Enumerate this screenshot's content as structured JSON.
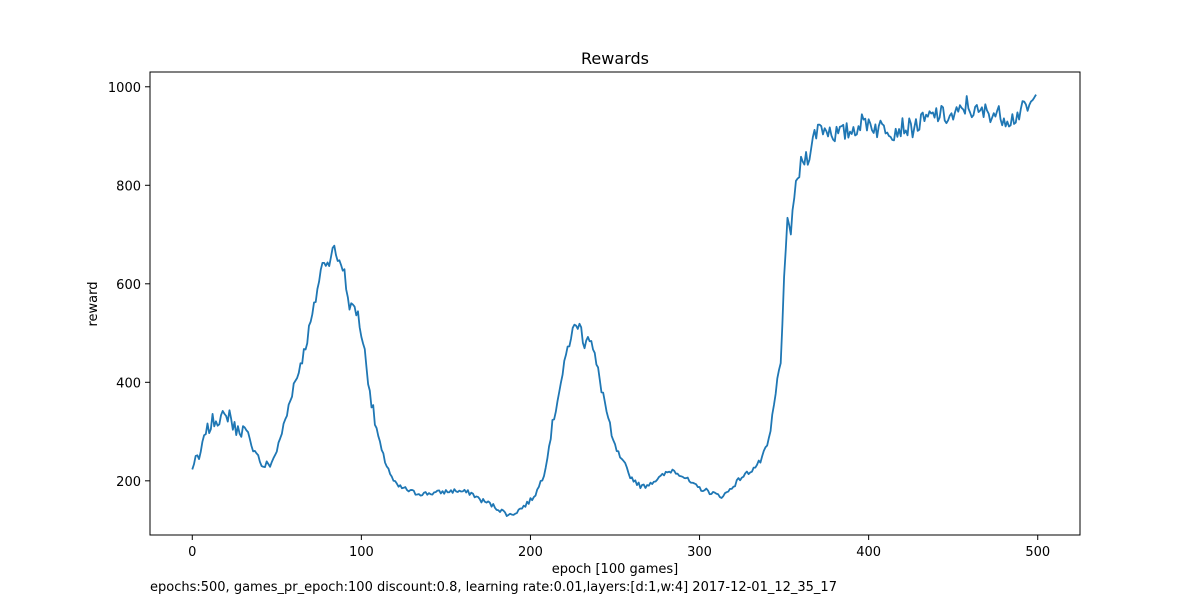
{
  "chart_data": {
    "type": "line",
    "title": "Rewards",
    "xlabel": "epoch [100 games]",
    "ylabel": "reward",
    "xlim": [
      -25,
      525
    ],
    "ylim": [
      90,
      1030
    ],
    "xticks": [
      0,
      100,
      200,
      300,
      400,
      500
    ],
    "yticks": [
      200,
      400,
      600,
      800,
      1000
    ],
    "grid": false,
    "color": "#1f77b4",
    "series": [
      {
        "anchors": [
          [
            0,
            222
          ],
          [
            2,
            250
          ],
          [
            4,
            242
          ],
          [
            6,
            275
          ],
          [
            8,
            300
          ],
          [
            10,
            305
          ],
          [
            12,
            322
          ],
          [
            15,
            325
          ],
          [
            18,
            330
          ],
          [
            20,
            325
          ],
          [
            22,
            340
          ],
          [
            24,
            312
          ],
          [
            26,
            305
          ],
          [
            28,
            300
          ],
          [
            30,
            305
          ],
          [
            33,
            295
          ],
          [
            35,
            268
          ],
          [
            38,
            260
          ],
          [
            40,
            240
          ],
          [
            42,
            225
          ],
          [
            44,
            235
          ],
          [
            46,
            232
          ],
          [
            48,
            245
          ],
          [
            50,
            262
          ],
          [
            52,
            285
          ],
          [
            54,
            310
          ],
          [
            56,
            335
          ],
          [
            58,
            370
          ],
          [
            60,
            395
          ],
          [
            62,
            410
          ],
          [
            64,
            440
          ],
          [
            66,
            460
          ],
          [
            68,
            490
          ],
          [
            70,
            520
          ],
          [
            72,
            550
          ],
          [
            74,
            590
          ],
          [
            76,
            625
          ],
          [
            78,
            650
          ],
          [
            80,
            640
          ],
          [
            82,
            660
          ],
          [
            84,
            670
          ],
          [
            86,
            650
          ],
          [
            88,
            645
          ],
          [
            90,
            620
          ],
          [
            92,
            570
          ],
          [
            94,
            550
          ],
          [
            96,
            555
          ],
          [
            98,
            535
          ],
          [
            100,
            500
          ],
          [
            102,
            460
          ],
          [
            104,
            410
          ],
          [
            106,
            360
          ],
          [
            108,
            320
          ],
          [
            110,
            290
          ],
          [
            112,
            260
          ],
          [
            114,
            240
          ],
          [
            116,
            225
          ],
          [
            118,
            205
          ],
          [
            120,
            195
          ],
          [
            122,
            188
          ],
          [
            125,
            185
          ],
          [
            128,
            180
          ],
          [
            132,
            175
          ],
          [
            138,
            174
          ],
          [
            145,
            176
          ],
          [
            150,
            178
          ],
          [
            156,
            180
          ],
          [
            160,
            178
          ],
          [
            165,
            175
          ],
          [
            170,
            162
          ],
          [
            175,
            155
          ],
          [
            180,
            145
          ],
          [
            185,
            135
          ],
          [
            188,
            130
          ],
          [
            192,
            138
          ],
          [
            196,
            148
          ],
          [
            200,
            160
          ],
          [
            204,
            180
          ],
          [
            208,
            215
          ],
          [
            210,
            250
          ],
          [
            212,
            290
          ],
          [
            214,
            330
          ],
          [
            216,
            370
          ],
          [
            218,
            400
          ],
          [
            220,
            430
          ],
          [
            222,
            470
          ],
          [
            224,
            495
          ],
          [
            226,
            510
          ],
          [
            228,
            520
          ],
          [
            230,
            505
          ],
          [
            232,
            480
          ],
          [
            234,
            500
          ],
          [
            236,
            480
          ],
          [
            238,
            450
          ],
          [
            240,
            420
          ],
          [
            242,
            390
          ],
          [
            244,
            360
          ],
          [
            246,
            320
          ],
          [
            248,
            290
          ],
          [
            250,
            270
          ],
          [
            252,
            255
          ],
          [
            254,
            240
          ],
          [
            256,
            232
          ],
          [
            258,
            215
          ],
          [
            260,
            205
          ],
          [
            262,
            200
          ],
          [
            264,
            192
          ],
          [
            266,
            188
          ],
          [
            268,
            190
          ],
          [
            272,
            198
          ],
          [
            276,
            205
          ],
          [
            280,
            215
          ],
          [
            284,
            222
          ],
          [
            288,
            215
          ],
          [
            292,
            205
          ],
          [
            296,
            192
          ],
          [
            300,
            185
          ],
          [
            304,
            180
          ],
          [
            308,
            175
          ],
          [
            312,
            168
          ],
          [
            316,
            175
          ],
          [
            320,
            190
          ],
          [
            324,
            205
          ],
          [
            328,
            215
          ],
          [
            332,
            225
          ],
          [
            336,
            240
          ],
          [
            338,
            255
          ],
          [
            340,
            270
          ],
          [
            342,
            300
          ],
          [
            344,
            350
          ],
          [
            346,
            400
          ],
          [
            348,
            450
          ],
          [
            350,
            600
          ],
          [
            352,
            720
          ],
          [
            354,
            710
          ],
          [
            356,
            780
          ],
          [
            358,
            810
          ],
          [
            360,
            840
          ],
          [
            362,
            855
          ],
          [
            364,
            860
          ],
          [
            366,
            880
          ],
          [
            368,
            900
          ],
          [
            370,
            920
          ],
          [
            375,
            915
          ],
          [
            380,
            905
          ],
          [
            385,
            905
          ],
          [
            390,
            912
          ],
          [
            395,
            925
          ],
          [
            400,
            930
          ],
          [
            405,
            915
          ],
          [
            410,
            920
          ],
          [
            415,
            910
          ],
          [
            420,
            920
          ],
          [
            425,
            915
          ],
          [
            430,
            925
          ],
          [
            435,
            935
          ],
          [
            440,
            945
          ],
          [
            445,
            940
          ],
          [
            450,
            938
          ],
          [
            455,
            950
          ],
          [
            458,
            965
          ],
          [
            460,
            955
          ],
          [
            465,
            945
          ],
          [
            470,
            950
          ],
          [
            475,
            945
          ],
          [
            480,
            940
          ],
          [
            485,
            935
          ],
          [
            490,
            950
          ],
          [
            495,
            958
          ],
          [
            499,
            975
          ]
        ]
      }
    ],
    "caption": "epochs:500, games_pr_epoch:100 discount:0.8, learning rate:0.01,layers:[d:1,w:4] 2017-12-01_12_35_17"
  }
}
